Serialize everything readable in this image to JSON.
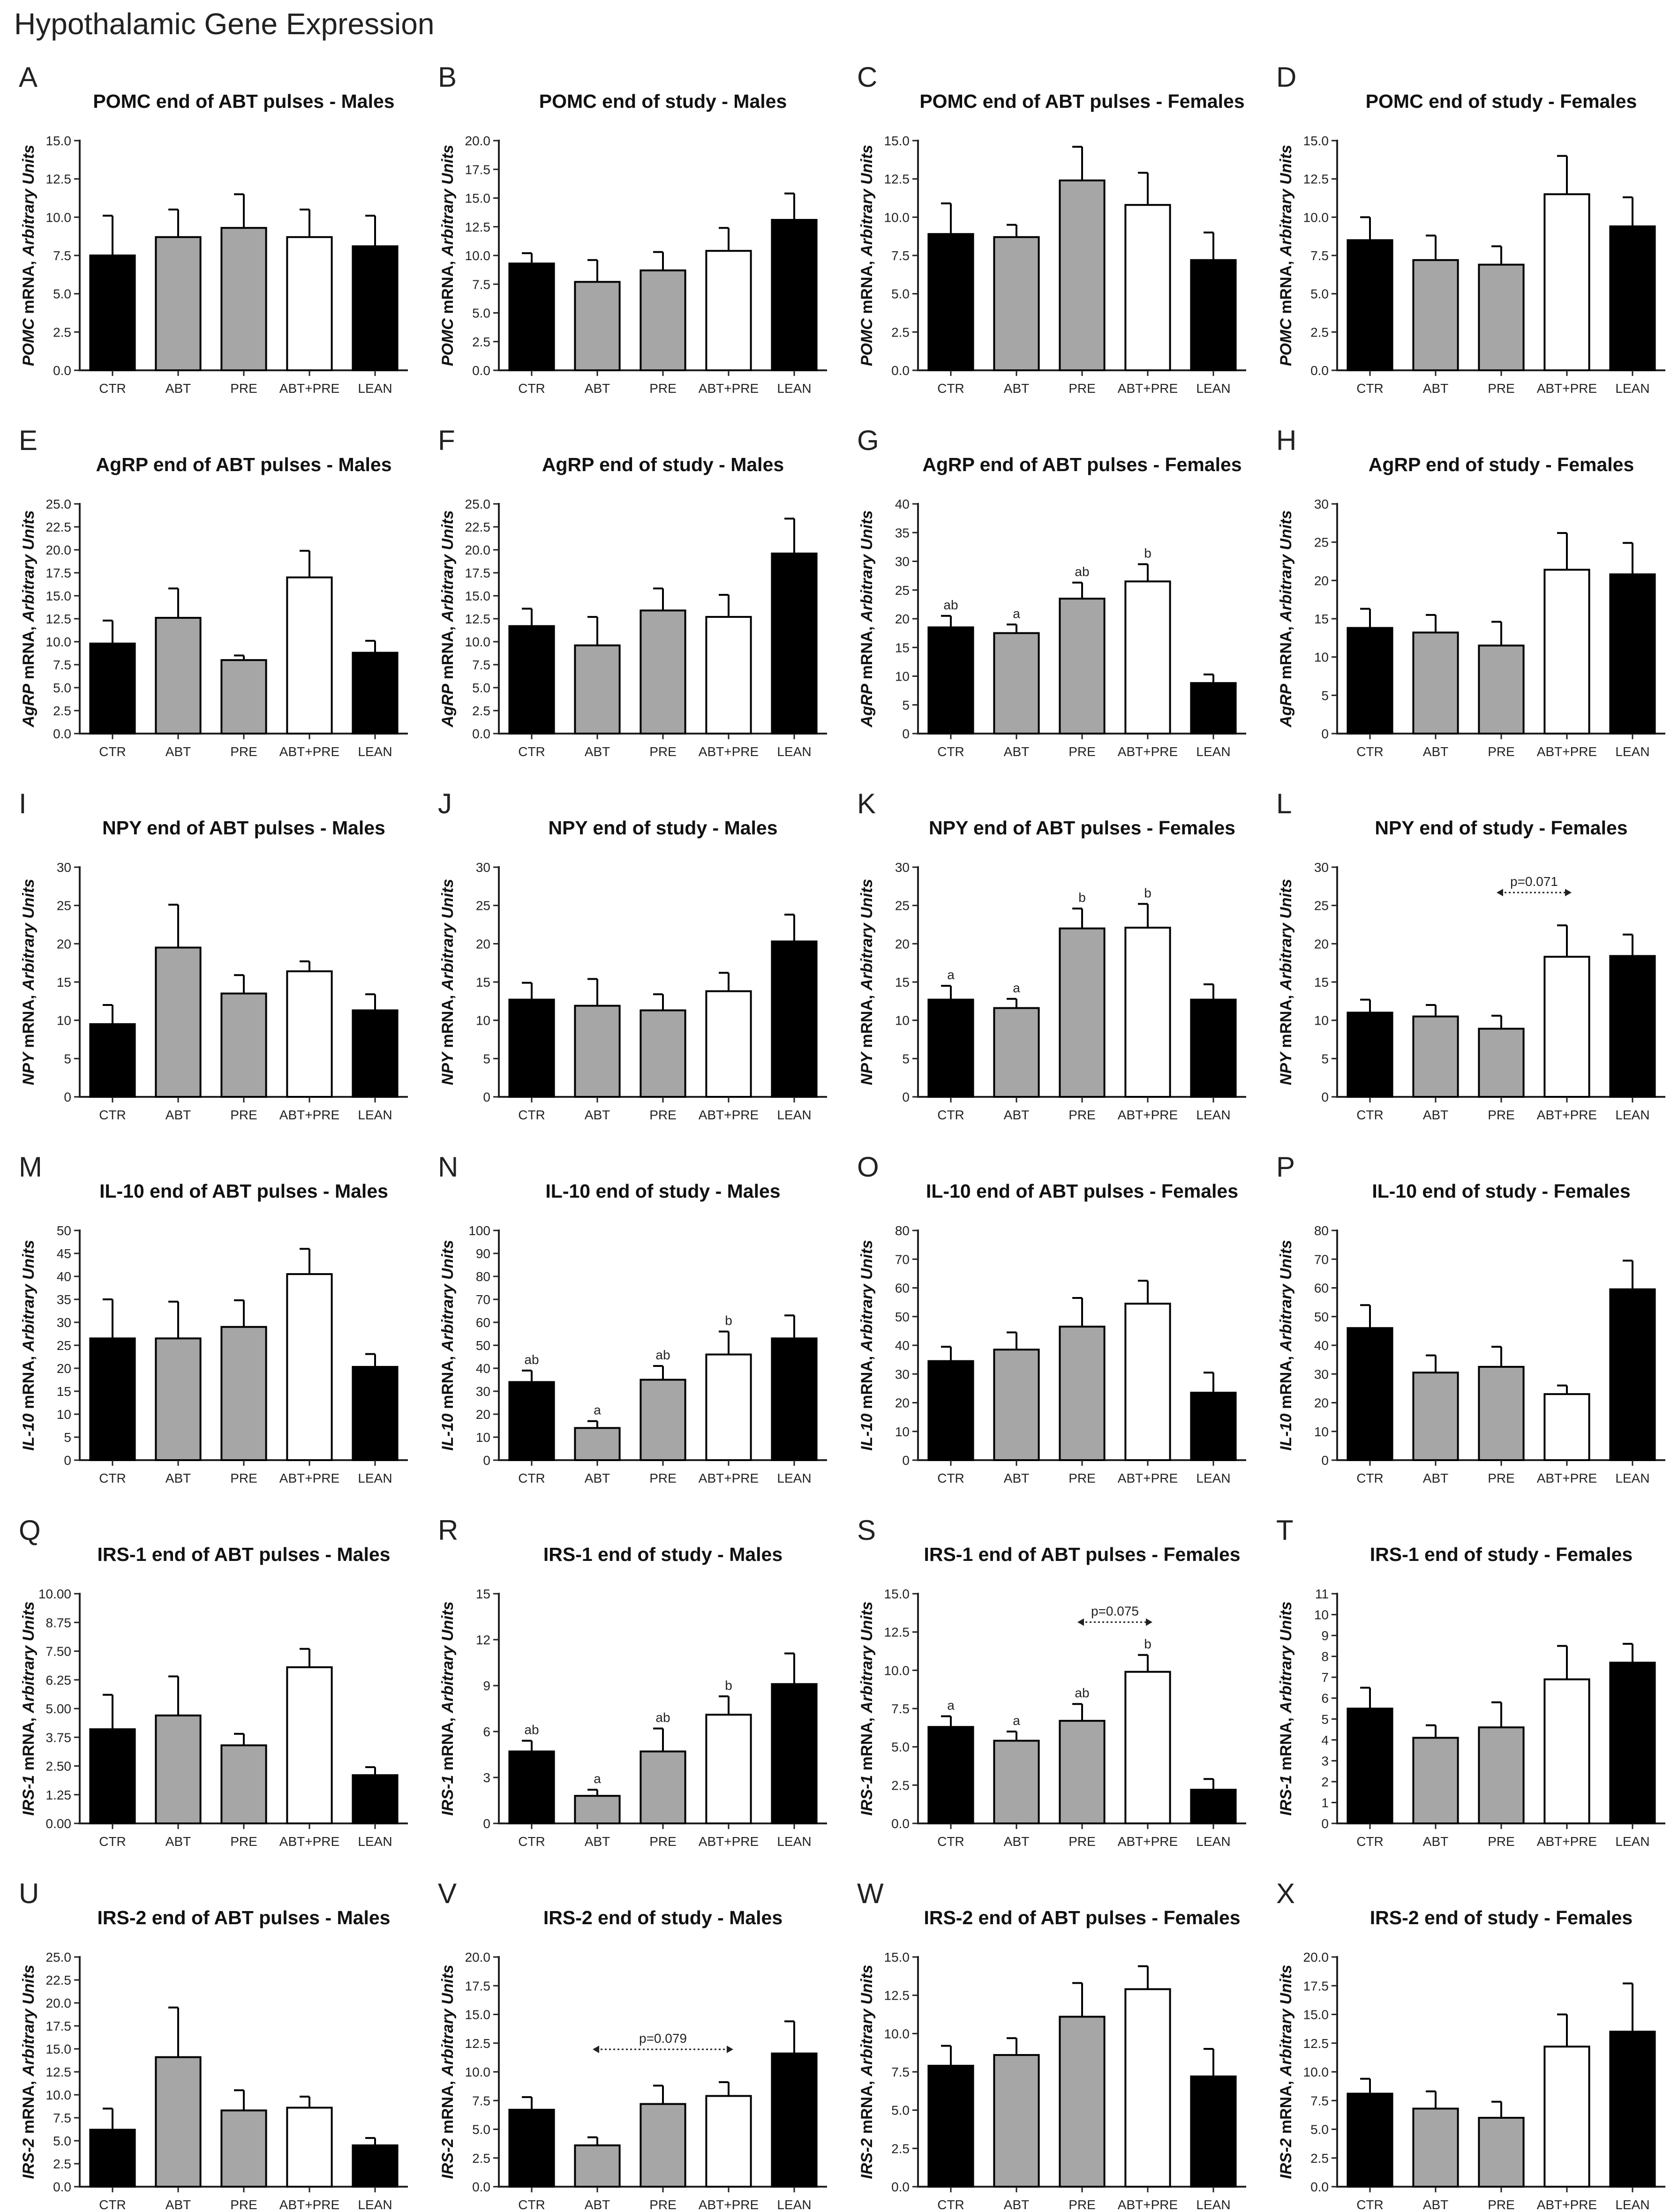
{
  "figure_title": "Hypothalamic Gene Expression",
  "colors": {
    "CTR": "#000000",
    "ABT": "#a6a6a6",
    "PRE": "#a6a6a6",
    "ABT+PRE": "#ffffff",
    "LEAN": "#000000",
    "axis": "#222222"
  },
  "chart_data": [
    {
      "letter": "A",
      "type": "bar",
      "title": "POMC end of ABT pulses - Males",
      "gene": "POMC",
      "ylabel_rest": " mRNA, Arbitrary Units",
      "categories": [
        "CTR",
        "ABT",
        "PRE",
        "ABT+PRE",
        "LEAN"
      ],
      "values": [
        7.5,
        8.7,
        9.3,
        8.7,
        8.1
      ],
      "errors": [
        2.6,
        1.8,
        2.2,
        1.8,
        2.0
      ],
      "ylim": [
        0,
        15
      ],
      "yticks": [
        "0.0",
        "2.5",
        "5.0",
        "7.5",
        "10.0",
        "12.5",
        "15.0"
      ],
      "letters": [],
      "pvalue": null
    },
    {
      "letter": "B",
      "type": "bar",
      "title": "POMC end of study - Males",
      "gene": "POMC",
      "ylabel_rest": " mRNA, Arbitrary Units",
      "categories": [
        "CTR",
        "ABT",
        "PRE",
        "ABT+PRE",
        "LEAN"
      ],
      "values": [
        9.3,
        7.7,
        8.7,
        10.4,
        13.1
      ],
      "errors": [
        0.9,
        1.9,
        1.6,
        2.0,
        2.3
      ],
      "ylim": [
        0,
        20
      ],
      "yticks": [
        "0.0",
        "2.5",
        "5.0",
        "7.5",
        "10.0",
        "12.5",
        "15.0",
        "17.5",
        "20.0"
      ],
      "letters": [],
      "pvalue": null
    },
    {
      "letter": "C",
      "type": "bar",
      "title": "POMC end of ABT pulses - Females",
      "gene": "POMC",
      "ylabel_rest": " mRNA, Arbitrary Units",
      "categories": [
        "CTR",
        "ABT",
        "PRE",
        "ABT+PRE",
        "LEAN"
      ],
      "values": [
        8.9,
        8.7,
        12.4,
        10.8,
        7.2
      ],
      "errors": [
        2.0,
        0.8,
        2.2,
        2.1,
        1.8
      ],
      "ylim": [
        0,
        15
      ],
      "yticks": [
        "0.0",
        "2.5",
        "5.0",
        "7.5",
        "10.0",
        "12.5",
        "15.0"
      ],
      "letters": [],
      "pvalue": null
    },
    {
      "letter": "D",
      "type": "bar",
      "title": "POMC end of study - Females",
      "gene": "POMC",
      "ylabel_rest": " mRNA, Arbitrary Units",
      "categories": [
        "CTR",
        "ABT",
        "PRE",
        "ABT+PRE",
        "LEAN"
      ],
      "values": [
        8.5,
        7.2,
        6.9,
        11.5,
        9.4
      ],
      "errors": [
        1.5,
        1.6,
        1.2,
        2.5,
        1.9
      ],
      "ylim": [
        0,
        15
      ],
      "yticks": [
        "0.0",
        "2.5",
        "5.0",
        "7.5",
        "10.0",
        "12.5",
        "15.0"
      ],
      "letters": [],
      "pvalue": null
    },
    {
      "letter": "E",
      "type": "bar",
      "title": "AgRP end of ABT pulses - Males",
      "gene": "AgRP",
      "ylabel_rest": " mRNA, Arbitrary Units",
      "categories": [
        "CTR",
        "ABT",
        "PRE",
        "ABT+PRE",
        "LEAN"
      ],
      "values": [
        9.8,
        12.6,
        8.0,
        17.0,
        8.8
      ],
      "errors": [
        2.5,
        3.2,
        0.5,
        2.9,
        1.3
      ],
      "ylim": [
        0,
        25
      ],
      "yticks": [
        "0.0",
        "2.5",
        "5.0",
        "7.5",
        "10.0",
        "12.5",
        "15.0",
        "17.5",
        "20.0",
        "22.5",
        "25.0"
      ],
      "letters": [],
      "pvalue": null
    },
    {
      "letter": "F",
      "type": "bar",
      "title": "AgRP end of study - Males",
      "gene": "AgRP",
      "ylabel_rest": " mRNA, Arbitrary Units",
      "categories": [
        "CTR",
        "ABT",
        "PRE",
        "ABT+PRE",
        "LEAN"
      ],
      "values": [
        11.7,
        9.6,
        13.4,
        12.7,
        19.6
      ],
      "errors": [
        1.9,
        3.1,
        2.4,
        2.4,
        3.8
      ],
      "ylim": [
        0,
        25
      ],
      "yticks": [
        "0.0",
        "2.5",
        "5.0",
        "7.5",
        "10.0",
        "12.5",
        "15.0",
        "17.5",
        "20.0",
        "22.5",
        "25.0"
      ],
      "letters": [],
      "pvalue": null
    },
    {
      "letter": "G",
      "type": "bar",
      "title": "AgRP end of ABT pulses - Females",
      "gene": "AgRP",
      "ylabel_rest": " mRNA, Arbitrary Units",
      "categories": [
        "CTR",
        "ABT",
        "PRE",
        "ABT+PRE",
        "LEAN"
      ],
      "values": [
        18.5,
        17.5,
        23.5,
        26.5,
        8.8
      ],
      "errors": [
        2.0,
        1.5,
        2.8,
        3.0,
        1.5
      ],
      "ylim": [
        0,
        40
      ],
      "yticks": [
        "0",
        "5",
        "10",
        "15",
        "20",
        "25",
        "30",
        "35",
        "40"
      ],
      "letters": [
        "ab",
        "a",
        "ab",
        "b",
        ""
      ],
      "pvalue": null
    },
    {
      "letter": "H",
      "type": "bar",
      "title": "AgRP end of study - Females",
      "gene": "AgRP",
      "ylabel_rest": " mRNA, Arbitrary Units",
      "categories": [
        "CTR",
        "ABT",
        "PRE",
        "ABT+PRE",
        "LEAN"
      ],
      "values": [
        13.8,
        13.2,
        11.5,
        21.4,
        20.8
      ],
      "errors": [
        2.5,
        2.3,
        3.1,
        4.8,
        4.1
      ],
      "ylim": [
        0,
        30
      ],
      "yticks": [
        "0",
        "5",
        "10",
        "15",
        "20",
        "25",
        "30"
      ],
      "letters": [],
      "pvalue": null
    },
    {
      "letter": "I",
      "type": "bar",
      "title": "NPY end of ABT pulses - Males",
      "gene": "NPY",
      "ylabel_rest": " mRNA, Arbitrary Units",
      "categories": [
        "CTR",
        "ABT",
        "PRE",
        "ABT+PRE",
        "LEAN"
      ],
      "values": [
        9.5,
        19.5,
        13.5,
        16.4,
        11.3
      ],
      "errors": [
        2.5,
        5.6,
        2.4,
        1.3,
        2.1
      ],
      "ylim": [
        0,
        30
      ],
      "yticks": [
        "0",
        "5",
        "10",
        "15",
        "20",
        "25",
        "30"
      ],
      "letters": [],
      "pvalue": null
    },
    {
      "letter": "J",
      "type": "bar",
      "title": "NPY end of study - Males",
      "gene": "NPY",
      "ylabel_rest": " mRNA, Arbitrary Units",
      "categories": [
        "CTR",
        "ABT",
        "PRE",
        "ABT+PRE",
        "LEAN"
      ],
      "values": [
        12.7,
        11.9,
        11.3,
        13.8,
        20.3
      ],
      "errors": [
        2.2,
        3.5,
        2.1,
        2.4,
        3.5
      ],
      "ylim": [
        0,
        30
      ],
      "yticks": [
        "0",
        "5",
        "10",
        "15",
        "20",
        "25",
        "30"
      ],
      "letters": [],
      "pvalue": null
    },
    {
      "letter": "K",
      "type": "bar",
      "title": "NPY end of ABT pulses - Females",
      "gene": "NPY",
      "ylabel_rest": " mRNA, Arbitrary Units",
      "categories": [
        "CTR",
        "ABT",
        "PRE",
        "ABT+PRE",
        "LEAN"
      ],
      "values": [
        12.7,
        11.6,
        22.0,
        22.1,
        12.7
      ],
      "errors": [
        1.8,
        1.2,
        2.6,
        3.1,
        2.0
      ],
      "ylim": [
        0,
        30
      ],
      "yticks": [
        "0",
        "5",
        "10",
        "15",
        "20",
        "25",
        "30"
      ],
      "letters": [
        "a",
        "a",
        "b",
        "b",
        ""
      ],
      "pvalue": null
    },
    {
      "letter": "L",
      "type": "bar",
      "title": "NPY end of study - Females",
      "gene": "NPY",
      "ylabel_rest": " mRNA, Arbitrary Units",
      "categories": [
        "CTR",
        "ABT",
        "PRE",
        "ABT+PRE",
        "LEAN"
      ],
      "values": [
        11.0,
        10.5,
        8.9,
        18.3,
        18.4
      ],
      "errors": [
        1.7,
        1.5,
        1.7,
        4.1,
        2.8
      ],
      "ylim": [
        0,
        30
      ],
      "yticks": [
        "0",
        "5",
        "10",
        "15",
        "20",
        "25",
        "30"
      ],
      "letters": [],
      "pvalue": {
        "text": "p=0.071",
        "from": 2,
        "to": 3
      }
    },
    {
      "letter": "M",
      "type": "bar",
      "title": "IL-10 end of ABT pulses - Males",
      "gene": "IL-10",
      "ylabel_rest": " mRNA, Arbitrary Units",
      "categories": [
        "CTR",
        "ABT",
        "PRE",
        "ABT+PRE",
        "LEAN"
      ],
      "values": [
        26.5,
        26.5,
        29.0,
        40.5,
        20.3
      ],
      "errors": [
        8.5,
        8.0,
        5.8,
        5.5,
        2.8
      ],
      "ylim": [
        0,
        50
      ],
      "yticks": [
        "0",
        "5",
        "10",
        "15",
        "20",
        "25",
        "30",
        "35",
        "40",
        "45",
        "50"
      ],
      "letters": [],
      "pvalue": null
    },
    {
      "letter": "N",
      "type": "bar",
      "title": "IL-10 end of study - Males",
      "gene": "IL-10",
      "ylabel_rest": " mRNA, Arbitrary Units",
      "categories": [
        "CTR",
        "ABT",
        "PRE",
        "ABT+PRE",
        "LEAN"
      ],
      "values": [
        34,
        14,
        35,
        46,
        53
      ],
      "errors": [
        5,
        3,
        6,
        10,
        10
      ],
      "ylim": [
        0,
        100
      ],
      "yticks": [
        "0",
        "10",
        "20",
        "30",
        "40",
        "50",
        "60",
        "70",
        "80",
        "90",
        "100"
      ],
      "letters": [
        "ab",
        "a",
        "ab",
        "b",
        ""
      ],
      "pvalue": null
    },
    {
      "letter": "O",
      "type": "bar",
      "title": "IL-10 end of ABT pulses - Females",
      "gene": "IL-10",
      "ylabel_rest": " mRNA, Arbitrary Units",
      "categories": [
        "CTR",
        "ABT",
        "PRE",
        "ABT+PRE",
        "LEAN"
      ],
      "values": [
        34.5,
        38.5,
        46.5,
        54.5,
        23.5
      ],
      "errors": [
        5,
        6,
        10,
        8,
        7
      ],
      "ylim": [
        0,
        80
      ],
      "yticks": [
        "0",
        "10",
        "20",
        "30",
        "40",
        "50",
        "60",
        "70",
        "80"
      ],
      "letters": [],
      "pvalue": null
    },
    {
      "letter": "P",
      "type": "bar",
      "title": "IL-10 end of study - Females",
      "gene": "IL-10",
      "ylabel_rest": " mRNA, Arbitrary Units",
      "categories": [
        "CTR",
        "ABT",
        "PRE",
        "ABT+PRE",
        "LEAN"
      ],
      "values": [
        46,
        30.5,
        32.5,
        23,
        59.5
      ],
      "errors": [
        8,
        6,
        7,
        3,
        10
      ],
      "ylim": [
        0,
        80
      ],
      "yticks": [
        "0",
        "10",
        "20",
        "30",
        "40",
        "50",
        "60",
        "70",
        "80"
      ],
      "letters": [],
      "pvalue": null
    },
    {
      "letter": "Q",
      "type": "bar",
      "title": "IRS-1 end of ABT pulses - Males",
      "gene": "IRS-1",
      "ylabel_rest": " mRNA, Arbitrary Units",
      "categories": [
        "CTR",
        "ABT",
        "PRE",
        "ABT+PRE",
        "LEAN"
      ],
      "values": [
        4.1,
        4.7,
        3.4,
        6.8,
        2.1
      ],
      "errors": [
        1.5,
        1.7,
        0.5,
        0.8,
        0.35
      ],
      "ylim": [
        0,
        10
      ],
      "yticks": [
        "0.00",
        "1.25",
        "2.50",
        "3.75",
        "5.00",
        "6.25",
        "7.50",
        "8.75",
        "10.00"
      ],
      "letters": [],
      "pvalue": null
    },
    {
      "letter": "R",
      "type": "bar",
      "title": "IRS-1 end of study - Males",
      "gene": "IRS-1",
      "ylabel_rest": " mRNA, Arbitrary Units",
      "categories": [
        "CTR",
        "ABT",
        "PRE",
        "ABT+PRE",
        "LEAN"
      ],
      "values": [
        4.7,
        1.8,
        4.7,
        7.1,
        9.1
      ],
      "errors": [
        0.7,
        0.4,
        1.5,
        1.2,
        2.0
      ],
      "ylim": [
        0,
        15
      ],
      "yticks": [
        "0",
        "3",
        "6",
        "9",
        "12",
        "15"
      ],
      "letters": [
        "ab",
        "a",
        "ab",
        "b",
        ""
      ],
      "pvalue": null
    },
    {
      "letter": "S",
      "type": "bar",
      "title": "IRS-1 end of ABT pulses - Females",
      "gene": "IRS-1",
      "ylabel_rest": " mRNA, Arbitrary Units",
      "categories": [
        "CTR",
        "ABT",
        "PRE",
        "ABT+PRE",
        "LEAN"
      ],
      "values": [
        6.3,
        5.4,
        6.7,
        9.9,
        2.2
      ],
      "errors": [
        0.7,
        0.6,
        1.1,
        1.1,
        0.7
      ],
      "ylim": [
        0,
        15
      ],
      "yticks": [
        "0.0",
        "2.5",
        "5.0",
        "7.5",
        "10.0",
        "12.5",
        "15.0"
      ],
      "letters": [
        "a",
        "a",
        "ab",
        "b",
        ""
      ],
      "pvalue": {
        "text": "p=0.075",
        "from": 2,
        "to": 3
      }
    },
    {
      "letter": "T",
      "type": "bar",
      "title": "IRS-1 end of study - Females",
      "gene": "IRS-1",
      "ylabel_rest": " mRNA, Arbitrary Units",
      "categories": [
        "CTR",
        "ABT",
        "PRE",
        "ABT+PRE",
        "LEAN"
      ],
      "values": [
        5.5,
        4.1,
        4.6,
        6.9,
        7.7
      ],
      "errors": [
        1.0,
        0.6,
        1.2,
        1.6,
        0.9
      ],
      "ylim": [
        0,
        11
      ],
      "yticks": [
        "0",
        "1",
        "2",
        "3",
        "4",
        "5",
        "6",
        "7",
        "8",
        "9",
        "10",
        "11"
      ],
      "letters": [],
      "pvalue": null
    },
    {
      "letter": "U",
      "type": "bar",
      "title": "IRS-2 end of ABT pulses - Males",
      "gene": "IRS-2",
      "ylabel_rest": " mRNA, Arbitrary Units",
      "categories": [
        "CTR",
        "ABT",
        "PRE",
        "ABT+PRE",
        "LEAN"
      ],
      "values": [
        6.2,
        14.1,
        8.3,
        8.6,
        4.5
      ],
      "errors": [
        2.3,
        5.4,
        2.2,
        1.2,
        0.8
      ],
      "ylim": [
        0,
        25
      ],
      "yticks": [
        "0.0",
        "2.5",
        "5.0",
        "7.5",
        "10.0",
        "12.5",
        "15.0",
        "17.5",
        "20.0",
        "22.5",
        "25.0"
      ],
      "letters": [],
      "pvalue": null
    },
    {
      "letter": "V",
      "type": "bar",
      "title": "IRS-2 end of study - Males",
      "gene": "IRS-2",
      "ylabel_rest": " mRNA, Arbitrary Units",
      "categories": [
        "CTR",
        "ABT",
        "PRE",
        "ABT+PRE",
        "LEAN"
      ],
      "values": [
        6.7,
        3.6,
        7.2,
        7.9,
        11.6
      ],
      "errors": [
        1.1,
        0.7,
        1.6,
        1.2,
        2.8
      ],
      "ylim": [
        0,
        20
      ],
      "yticks": [
        "0.0",
        "2.5",
        "5.0",
        "7.5",
        "10.0",
        "12.5",
        "15.0",
        "17.5",
        "20.0"
      ],
      "letters": [],
      "pvalue": {
        "text": "p=0.079",
        "from": 1,
        "to": 3
      }
    },
    {
      "letter": "W",
      "type": "bar",
      "title": "IRS-2 end of ABT pulses - Females",
      "gene": "IRS-2",
      "ylabel_rest": " mRNA, Arbitrary Units",
      "categories": [
        "CTR",
        "ABT",
        "PRE",
        "ABT+PRE",
        "LEAN"
      ],
      "values": [
        7.9,
        8.6,
        11.1,
        12.9,
        7.2
      ],
      "errors": [
        1.3,
        1.1,
        2.2,
        1.5,
        1.8
      ],
      "ylim": [
        0,
        15
      ],
      "yticks": [
        "0.0",
        "2.5",
        "5.0",
        "7.5",
        "10.0",
        "12.5",
        "15.0"
      ],
      "letters": [],
      "pvalue": null
    },
    {
      "letter": "X",
      "type": "bar",
      "title": "IRS-2 end of study - Females",
      "gene": "IRS-2",
      "ylabel_rest": " mRNA, Arbitrary Units",
      "categories": [
        "CTR",
        "ABT",
        "PRE",
        "ABT+PRE",
        "LEAN"
      ],
      "values": [
        8.1,
        6.8,
        6.0,
        12.2,
        13.5
      ],
      "errors": [
        1.3,
        1.5,
        1.4,
        2.8,
        4.2
      ],
      "ylim": [
        0,
        20
      ],
      "yticks": [
        "0.0",
        "2.5",
        "5.0",
        "7.5",
        "10.0",
        "12.5",
        "15.0",
        "17.5",
        "20.0"
      ],
      "letters": [],
      "pvalue": null
    }
  ]
}
